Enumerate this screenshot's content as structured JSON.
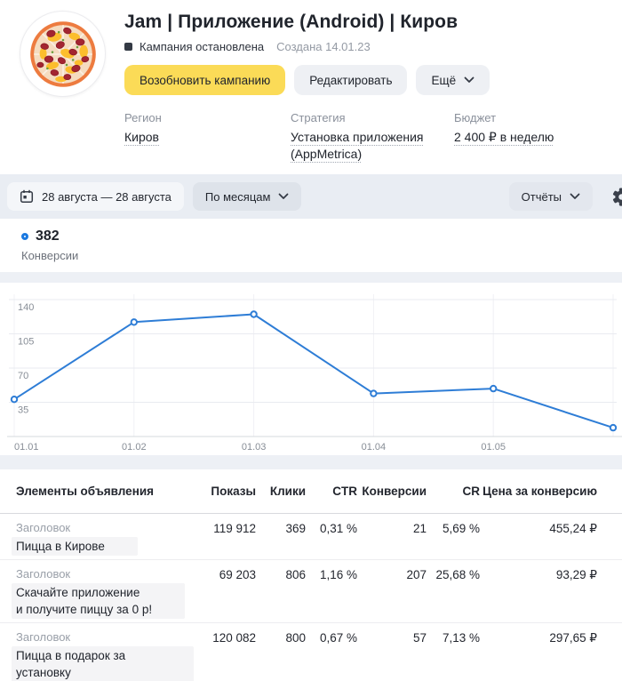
{
  "header": {
    "title": "Jam | Приложение (Android) | Киров",
    "status": "Кампания остановлена",
    "created": "Создана 14.01.23",
    "actions": {
      "resume": "Возобновить кампанию",
      "edit": "Редактировать",
      "more": "Ещё"
    },
    "fields": [
      {
        "label": "Регион",
        "value": "Киров"
      },
      {
        "label": "Стратегия",
        "value": "Установка приложения\n(AppMetrica)"
      },
      {
        "label": "Бюджет",
        "value": "2 400 ₽ в неделю"
      }
    ],
    "accent_color": "#fbdb57"
  },
  "toolbar": {
    "date_range": "28 августа — 28 августа",
    "group_by": "По месяцам",
    "reports": "Отчёты",
    "icons": [
      "calendar-icon",
      "chevron-down-icon",
      "gear-icon"
    ]
  },
  "metric": {
    "value": "382",
    "label": "Конверсии",
    "color": "#1b79e0"
  },
  "chart_data": {
    "type": "line",
    "series_name": "Конверсии",
    "x_labels": [
      "01.01",
      "01.02",
      "01.03",
      "01.04",
      "01.05",
      ""
    ],
    "values": [
      38,
      117,
      125,
      44,
      49,
      9
    ],
    "total": 382,
    "yticks": [
      35,
      70,
      105,
      140
    ],
    "ylim": [
      0,
      157
    ],
    "grid": true,
    "legend_position": "none",
    "line_color": "#2e7dd6",
    "tick_color": "#878d96"
  },
  "table": {
    "columns": [
      "Элементы объявления",
      "Показы",
      "Клики",
      "CTR",
      "Конверсии",
      "CR",
      "Цена за конверсию"
    ],
    "rows": [
      {
        "kind": "Заголовок",
        "text": "Пицца в Кирове",
        "cells": [
          "119 912",
          "369",
          "0,31 %",
          "21",
          "5,69 %",
          "455,24 ₽"
        ]
      },
      {
        "kind": "Заголовок",
        "text": "Скачайте приложение\nи получите пиццу за 0 р!",
        "cells": [
          "69 203",
          "806",
          "1,16 %",
          "207",
          "25,68 %",
          "93,29 ₽"
        ]
      },
      {
        "kind": "Заголовок",
        "text": "Пицца в подарок за установку\nприложения",
        "cells": [
          "120 082",
          "800",
          "0,67 %",
          "57",
          "7,13 %",
          "297,65 ₽"
        ]
      }
    ]
  }
}
